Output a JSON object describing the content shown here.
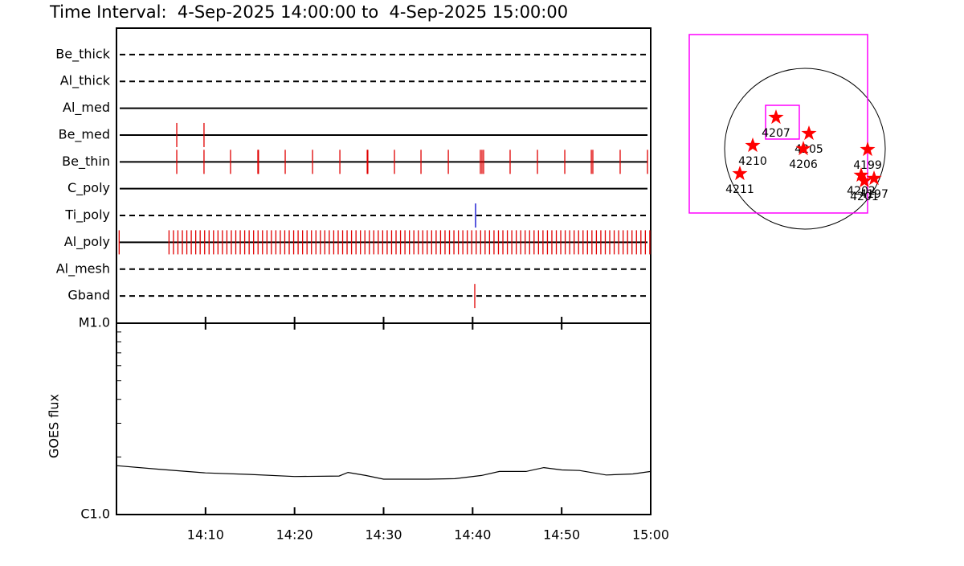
{
  "chart_data": [
    {
      "type": "timeline",
      "title": "Time Interval:  4-Sep-2025 14:00:00 to  4-Sep-2025 15:00:00",
      "xlim": [
        0,
        60
      ],
      "series": [
        {
          "name": "Be_thick",
          "line": "dashed",
          "color": "#e00000",
          "values": []
        },
        {
          "name": "Al_thick",
          "line": "dashed",
          "color": "#e00000",
          "values": []
        },
        {
          "name": "Al_med",
          "line": "solid",
          "color": "#e00000",
          "values": []
        },
        {
          "name": "Be_med",
          "line": "solid",
          "color": "#e00000",
          "values": [
            6.77,
            9.83
          ]
        },
        {
          "name": "Be_thin",
          "line": "solid",
          "color": "#e00000",
          "values": [
            6.77,
            9.83,
            12.81,
            15.88,
            15.95,
            18.95,
            22.02,
            25.09,
            28.16,
            28.23,
            31.22,
            34.2,
            37.27,
            40.87,
            41.05,
            41.23,
            44.21,
            47.28,
            50.35,
            53.33,
            53.5,
            56.57,
            59.64
          ]
        },
        {
          "name": "C_poly",
          "line": "solid",
          "color": "#e00000",
          "values": []
        },
        {
          "name": "Ti_poly",
          "line": "dashed",
          "color": "#0000cc",
          "values": [
            40.33
          ]
        },
        {
          "name": "Al_poly",
          "line": "solid",
          "color": "#e00000",
          "values": [
            0.3,
            5.9,
            6.4,
            6.9,
            7.4,
            7.9,
            8.4,
            8.9,
            9.4,
            9.9,
            10.4,
            10.9,
            11.4,
            11.9,
            12.4,
            12.9,
            13.4,
            13.9,
            14.4,
            14.9,
            15.4,
            15.9,
            16.4,
            16.9,
            17.4,
            17.9,
            18.4,
            18.9,
            19.4,
            19.9,
            20.4,
            20.9,
            21.4,
            21.9,
            22.4,
            22.9,
            23.4,
            23.9,
            24.4,
            24.9,
            25.4,
            25.9,
            26.4,
            26.9,
            27.4,
            27.9,
            28.4,
            28.9,
            29.4,
            29.9,
            30.4,
            30.9,
            31.4,
            31.9,
            32.4,
            32.9,
            33.4,
            33.9,
            34.4,
            34.9,
            35.4,
            35.9,
            36.4,
            36.9,
            37.4,
            37.9,
            38.4,
            38.9,
            39.4,
            39.9,
            40.4,
            40.9,
            41.4,
            41.9,
            42.4,
            42.9,
            43.4,
            43.9,
            44.4,
            44.9,
            45.4,
            45.9,
            46.4,
            46.9,
            47.4,
            47.9,
            48.4,
            48.9,
            49.4,
            49.9,
            50.4,
            50.9,
            51.4,
            51.9,
            52.4,
            52.9,
            53.4,
            53.9,
            54.4,
            54.9,
            55.4,
            55.9,
            56.4,
            56.9,
            57.4,
            57.9,
            58.4,
            58.9,
            59.4,
            59.9
          ]
        },
        {
          "name": "Al_mesh",
          "line": "dashed",
          "color": "#e00000",
          "values": []
        },
        {
          "name": "Gband",
          "line": "dashed",
          "color": "#e00000",
          "values": [
            40.24
          ]
        }
      ]
    },
    {
      "type": "line",
      "ylabel": "GOES flux",
      "color": "#000000",
      "log_y": true,
      "xlim": [
        0,
        60
      ],
      "xticks": [
        {
          "value": 10,
          "label": "14:10"
        },
        {
          "value": 20,
          "label": "14:20"
        },
        {
          "value": 30,
          "label": "14:30"
        },
        {
          "value": 40,
          "label": "14:40"
        },
        {
          "value": 50,
          "label": "14:50"
        },
        {
          "value": 60,
          "label": "15:00"
        }
      ],
      "ylim": [
        1e-06,
        1e-05
      ],
      "yticks": [
        {
          "value": 1e-06,
          "label": "C1.0"
        },
        {
          "value": 1e-05,
          "label": "M1.0"
        }
      ],
      "minor_yticks": [
        2e-06,
        3e-06,
        4e-06,
        5e-06,
        6e-06,
        7e-06,
        8e-06,
        9e-06
      ],
      "x": [
        0,
        5,
        10,
        15,
        20,
        25,
        26,
        28,
        30,
        35,
        38,
        41,
        43,
        46,
        48,
        50,
        52,
        55,
        58,
        60
      ],
      "values": [
        1.8e-06,
        1.72e-06,
        1.65e-06,
        1.62e-06,
        1.58e-06,
        1.59e-06,
        1.66e-06,
        1.6e-06,
        1.53e-06,
        1.53e-06,
        1.54e-06,
        1.6e-06,
        1.68e-06,
        1.68e-06,
        1.76e-06,
        1.71e-06,
        1.7e-06,
        1.61e-06,
        1.63e-06,
        1.68e-06
      ]
    },
    {
      "type": "scatter",
      "color": "#ff0000",
      "fov_color": "#ff00ff",
      "labels": [
        "4207",
        "4205",
        "4206",
        "4210",
        "4211",
        "4199",
        "4202",
        "4201",
        "4197"
      ],
      "x": [
        -346,
        48,
        -19,
        -624,
        -778,
        749,
        672,
        710,
        826
      ],
      "y": [
        374,
        182,
        0,
        38,
        -298,
        -10,
        -317,
        -384,
        -355
      ],
      "fov": [
        {
          "x": -317,
          "y": 298,
          "size": 2131
        },
        {
          "x": -269,
          "y": 317,
          "size": 403
        }
      ]
    }
  ]
}
